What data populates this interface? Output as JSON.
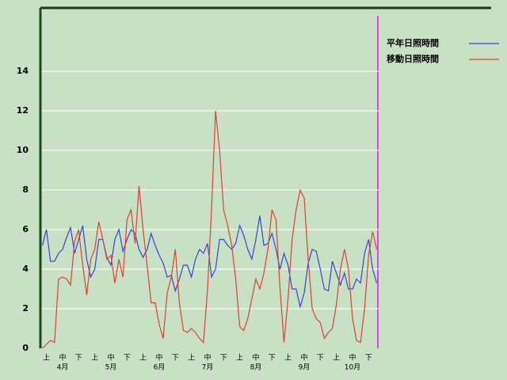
{
  "chart_data": {
    "type": "line",
    "categories": [
      null,
      "上",
      null,
      null,
      null,
      "中",
      null,
      null,
      null,
      "下",
      null,
      null,
      null,
      "上",
      null,
      null,
      null,
      "中",
      null,
      null,
      null,
      "下",
      null,
      null,
      null,
      "上",
      null,
      null,
      null,
      "中",
      null,
      null,
      null,
      "下",
      null,
      null,
      null,
      "上",
      null,
      null,
      null,
      "中",
      null,
      null,
      null,
      "下",
      null,
      null,
      null,
      "上",
      null,
      null,
      null,
      "中",
      null,
      null,
      null,
      "下",
      null,
      null,
      null,
      "上",
      null,
      null,
      null,
      "中",
      null,
      null,
      null,
      "下",
      null,
      null,
      null,
      "上",
      null,
      null,
      null,
      "中",
      null,
      null,
      null,
      "下",
      null,
      null
    ],
    "month_labels": [
      null,
      null,
      null,
      null,
      null,
      "4月",
      null,
      null,
      null,
      null,
      null,
      null,
      null,
      null,
      null,
      null,
      null,
      "5月",
      null,
      null,
      null,
      null,
      null,
      null,
      null,
      null,
      null,
      null,
      null,
      "6月",
      null,
      null,
      null,
      null,
      null,
      null,
      null,
      null,
      null,
      null,
      null,
      "7月",
      null,
      null,
      null,
      null,
      null,
      null,
      null,
      null,
      null,
      null,
      null,
      "8月",
      null,
      null,
      null,
      null,
      null,
      null,
      null,
      null,
      null,
      null,
      null,
      "9月",
      null,
      null,
      null,
      null,
      null,
      null,
      null,
      null,
      null,
      null,
      null,
      "10月",
      null,
      null,
      null,
      null,
      null,
      null
    ],
    "series": [
      {
        "name": "平年日照時間",
        "color": "#3344dd",
        "values": [
          5.2,
          6,
          4.4,
          4.4,
          4.8,
          5,
          5.6,
          6.1,
          4.8,
          5.5,
          6.2,
          4.5,
          3.6,
          4,
          5.5,
          5.5,
          4.6,
          4.2,
          5.5,
          6,
          4.9,
          5.5,
          6,
          5.8,
          5,
          4.6,
          5,
          5.8,
          5.2,
          4.7,
          4.3,
          3.6,
          3.7,
          2.9,
          3.5,
          4.2,
          4.2,
          3.6,
          4.5,
          5,
          4.8,
          5.3,
          3.6,
          4,
          5.5,
          5.5,
          5.2,
          5,
          5.3,
          6.2,
          5.7,
          5,
          4.5,
          5.5,
          6.7,
          5.2,
          5.3,
          5.8,
          5,
          4,
          4.8,
          4.2,
          3,
          3,
          2.1,
          2.8,
          4.3,
          5,
          4.9,
          4,
          3,
          2.9,
          4.4,
          3.8,
          3.2,
          3.8,
          3,
          3,
          3.5,
          3.3,
          4.8,
          5.5,
          4,
          3.3
        ]
      },
      {
        "name": "移動日照時間",
        "color": "#e04030",
        "values": [
          0,
          0.2,
          0.4,
          0.3,
          3.5,
          3.6,
          3.5,
          3.2,
          5.4,
          6,
          4.2,
          2.7,
          4.5,
          5,
          6.4,
          5.5,
          4.5,
          4.7,
          3.3,
          4.5,
          3.6,
          6.5,
          7,
          5.3,
          8.2,
          6,
          4.2,
          2.3,
          2.3,
          1.2,
          0.5,
          2.8,
          3.6,
          5,
          2.3,
          0.9,
          0.8,
          1,
          0.8,
          0.5,
          0.3,
          3,
          7,
          12,
          10,
          7,
          6.2,
          5.2,
          3.5,
          1.1,
          0.9,
          1.5,
          2.5,
          3.5,
          3,
          3.8,
          5,
          7,
          6.5,
          3,
          0.3,
          2.5,
          5.5,
          7,
          8,
          7.6,
          4.5,
          2,
          1.5,
          1.3,
          0.5,
          0.8,
          1,
          2.2,
          4,
          5,
          4,
          1.5,
          0.4,
          0.3,
          2,
          4.7,
          5.9,
          5
        ]
      }
    ],
    "ylim": [
      0,
      17.2
    ],
    "yticks": [
      0,
      2,
      4,
      6,
      8,
      10,
      12,
      14
    ],
    "grid": true
  }
}
